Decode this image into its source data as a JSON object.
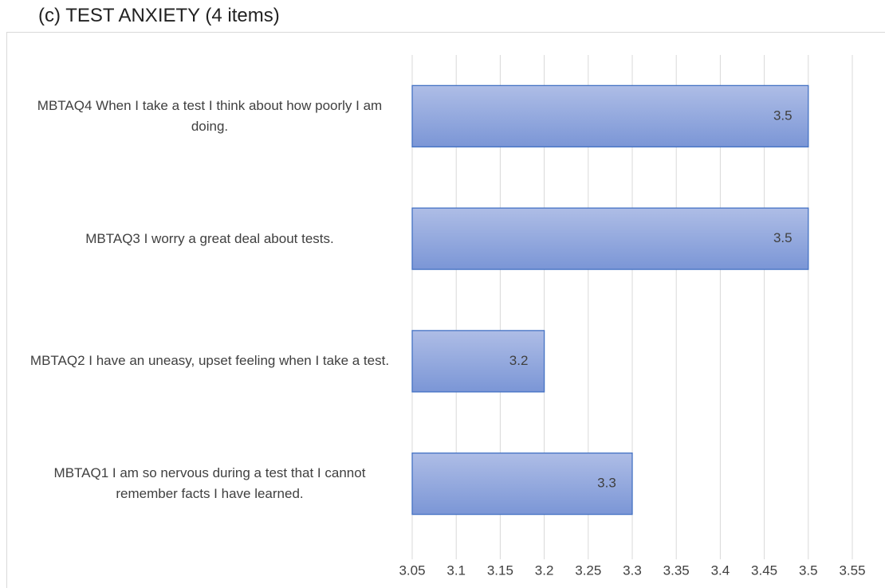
{
  "chart_data": {
    "type": "bar",
    "orientation": "horizontal",
    "title": "(c)  TEST ANXIETY (4 items)",
    "categories": [
      "MBTAQ4 When I take a test I think about how poorly I am doing.",
      "MBTAQ3 I worry a great deal about tests.",
      "MBTAQ2 I have an uneasy, upset feeling when I take a test.",
      "MBTAQ1 I am so nervous during a test that I cannot remember facts I have learned."
    ],
    "values": [
      3.5,
      3.5,
      3.2,
      3.3
    ],
    "color": "#4472c4",
    "xlim": [
      3.05,
      3.55
    ],
    "xticks": [
      3.05,
      3.1,
      3.15,
      3.2,
      3.25,
      3.3,
      3.35,
      3.4,
      3.45,
      3.5,
      3.55
    ],
    "grid": true
  }
}
